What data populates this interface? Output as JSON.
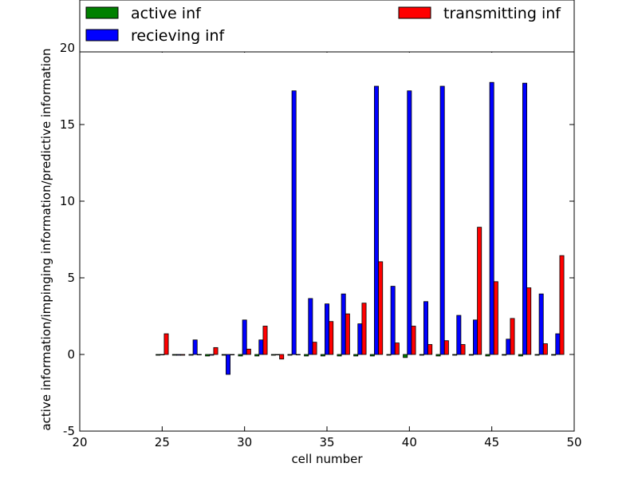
{
  "chart_data": {
    "type": "bar",
    "xlabel": "cell number",
    "ylabel": "active information/impinging information/predictive information",
    "xlim": [
      20,
      50
    ],
    "ylim": [
      -5,
      20
    ],
    "xticks": [
      20,
      25,
      30,
      35,
      40,
      45,
      50
    ],
    "yticks": [
      -5,
      0,
      5,
      10,
      15,
      20
    ],
    "x": [
      25,
      26,
      27,
      28,
      29,
      30,
      31,
      32,
      33,
      34,
      35,
      36,
      37,
      38,
      39,
      40,
      41,
      42,
      43,
      44,
      45,
      46,
      47,
      48,
      49
    ],
    "legend_position": "top",
    "series": [
      {
        "name": "active inf",
        "color": "#008000",
        "values": [
          -0.05,
          -0.05,
          -0.05,
          -0.1,
          -0.05,
          -0.1,
          -0.1,
          -0.05,
          -0.05,
          -0.1,
          -0.1,
          -0.1,
          -0.1,
          -0.1,
          -0.05,
          -0.2,
          -0.05,
          -0.1,
          -0.05,
          -0.05,
          -0.1,
          -0.05,
          -0.1,
          -0.05,
          -0.05
        ]
      },
      {
        "name": "recieving inf",
        "color": "#0000ff",
        "values": [
          0,
          -0.05,
          0.95,
          -0.05,
          -1.3,
          2.25,
          0.95,
          0,
          17.2,
          3.65,
          3.3,
          3.95,
          2.0,
          17.5,
          4.45,
          17.2,
          3.45,
          17.5,
          2.55,
          2.25,
          17.75,
          1.0,
          17.7,
          3.95,
          1.35
        ]
      },
      {
        "name": "transmitting inf",
        "color": "#ff0000",
        "values": [
          1.35,
          -0.05,
          0,
          0.45,
          0,
          0.35,
          1.85,
          -0.3,
          0,
          0.8,
          2.15,
          2.65,
          3.35,
          6.05,
          0.75,
          1.85,
          0.65,
          0.9,
          0.65,
          8.3,
          4.75,
          2.35,
          4.35,
          0.7,
          6.45
        ]
      }
    ]
  }
}
